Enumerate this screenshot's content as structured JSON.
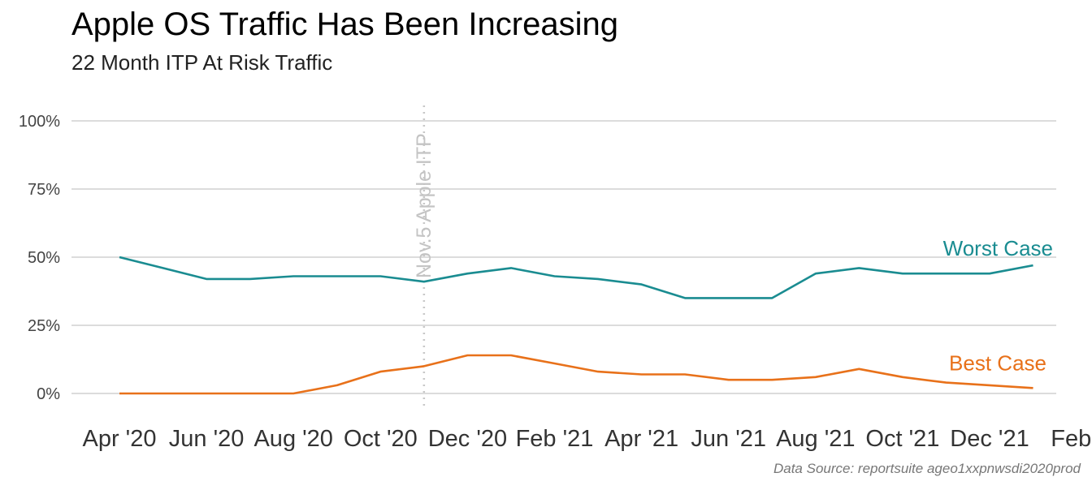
{
  "title": "Apple OS Traffic Has Been Increasing",
  "subtitle": "22 Month ITP At Risk Traffic",
  "caption": "Data Source: reportsuite ageo1xxpnwsdi2020prod",
  "chart_data": {
    "type": "line",
    "title": "Apple OS Traffic Has Been Increasing",
    "subtitle": "22 Month ITP At Risk Traffic",
    "xlabel": "",
    "ylabel": "",
    "ylim": [
      0,
      1
    ],
    "yticks": [
      {
        "value": 1.0,
        "label": "100%"
      },
      {
        "value": 0.75,
        "label": "75%"
      },
      {
        "value": 0.5,
        "label": "50%"
      },
      {
        "value": 0.25,
        "label": "25%"
      },
      {
        "value": 0.0,
        "label": "0%"
      }
    ],
    "xticks": [
      "Apr '20",
      "Jun '20",
      "Aug '20",
      "Oct '20",
      "Dec '20",
      "Feb '21",
      "Apr '21",
      "Jun '21",
      "Aug '21",
      "Oct '21",
      "Dec '21",
      "Feb '"
    ],
    "grid": "horizontal",
    "x": [
      "2020-04",
      "2020-05",
      "2020-06",
      "2020-07",
      "2020-08",
      "2020-09",
      "2020-10",
      "2020-11",
      "2020-12",
      "2021-01",
      "2021-02",
      "2021-03",
      "2021-04",
      "2021-05",
      "2021-06",
      "2021-07",
      "2021-08",
      "2021-09",
      "2021-10",
      "2021-11",
      "2021-12",
      "2022-01"
    ],
    "series": [
      {
        "name": "Worst Case",
        "color": "#1a8c91",
        "values": [
          0.5,
          0.46,
          0.42,
          0.42,
          0.43,
          0.43,
          0.43,
          0.41,
          0.44,
          0.46,
          0.43,
          0.42,
          0.4,
          0.35,
          0.35,
          0.35,
          0.44,
          0.46,
          0.44,
          0.44,
          0.44,
          0.47
        ]
      },
      {
        "name": "Best Case",
        "color": "#e8711a",
        "values": [
          0.0,
          0.0,
          0.0,
          0.0,
          0.0,
          0.03,
          0.08,
          0.1,
          0.14,
          0.14,
          0.11,
          0.08,
          0.07,
          0.07,
          0.05,
          0.05,
          0.06,
          0.09,
          0.06,
          0.04,
          0.03,
          0.02
        ]
      }
    ],
    "annotations": [
      {
        "text": "Nov.5 Apple ITP",
        "x": "2020-11",
        "style": "dotted vertical line"
      }
    ]
  }
}
